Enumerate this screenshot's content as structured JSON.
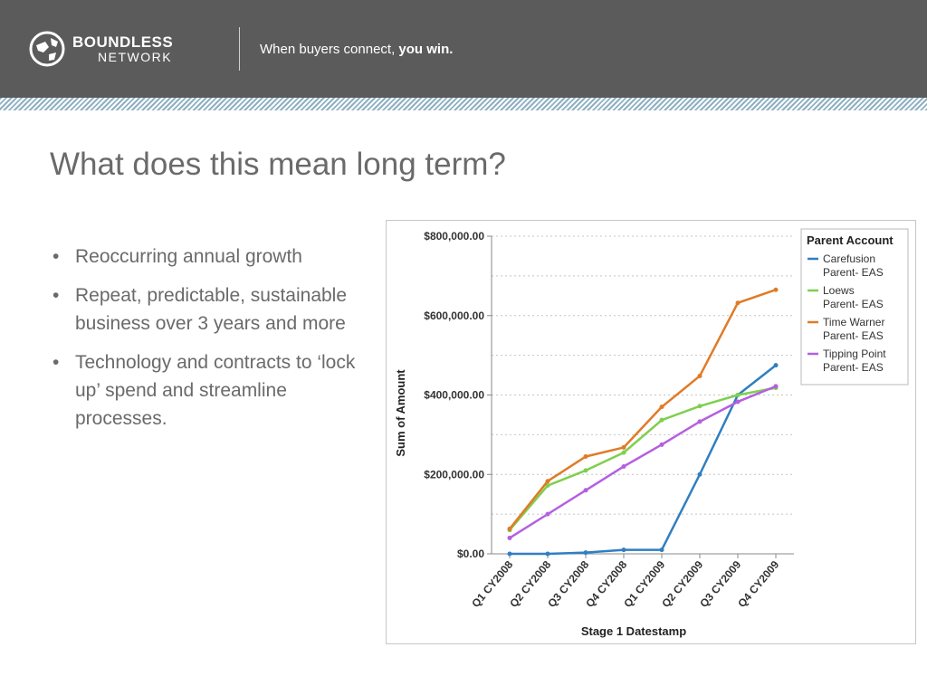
{
  "header": {
    "brand_line1": "BOUNDLESS",
    "brand_line2": "NETWORK",
    "tagline_regular": "When buyers connect, ",
    "tagline_bold": "you win.",
    "logo_icon": "globe-icon",
    "colors": {
      "bar": "#5b5b5b",
      "stripe": "#8fb0c2"
    }
  },
  "slide": {
    "title": "What does this mean long term?",
    "bullets": [
      "Reoccurring annual growth",
      "Repeat, predictable, sustainable business over 3 years and more",
      "Technology and contracts to ‘lock up’ spend and streamline processes."
    ]
  },
  "chart_data": {
    "type": "line",
    "title": "",
    "xlabel": "Stage 1 Datestamp",
    "ylabel": "Sum of Amount",
    "categories": [
      "Q1 CY2008",
      "Q2 CY2008",
      "Q3 CY2008",
      "Q4 CY2008",
      "Q1 CY2009",
      "Q2 CY2009",
      "Q3 CY2009",
      "Q4 CY2009"
    ],
    "ylim": [
      0,
      800000
    ],
    "yticks": [
      0,
      200000,
      400000,
      600000,
      800000
    ],
    "ytick_labels": [
      "$0.00",
      "$200,000.00",
      "$400,000.00",
      "$600,000.00",
      "$800,000.00"
    ],
    "grid": "horizontal dotted",
    "legend_title": "Parent Account",
    "legend_position": "top-right",
    "series": [
      {
        "name": "Carefusion Parent- EAS",
        "label_lines": [
          "Carefusion",
          "Parent- EAS"
        ],
        "color": "#2f7fc1",
        "values": [
          0,
          0,
          3000,
          10000,
          10000,
          200000,
          400000,
          475000
        ]
      },
      {
        "name": "Loews Parent- EAS",
        "label_lines": [
          "Loews",
          "Parent- EAS"
        ],
        "color": "#7fcf4f",
        "values": [
          60000,
          172000,
          210000,
          255000,
          337000,
          372000,
          400000,
          418000
        ]
      },
      {
        "name": "Time Warner Parent- EAS",
        "label_lines": [
          "Time Warner",
          "Parent- EAS"
        ],
        "color": "#e07b27",
        "values": [
          63000,
          183000,
          245000,
          268000,
          370000,
          448000,
          632000,
          665000
        ]
      },
      {
        "name": "Tipping Point Parent- EAS",
        "label_lines": [
          "Tipping Point",
          "Parent- EAS"
        ],
        "color": "#b45fe0",
        "values": [
          40000,
          100000,
          160000,
          220000,
          275000,
          333000,
          383000,
          422000
        ]
      }
    ]
  }
}
